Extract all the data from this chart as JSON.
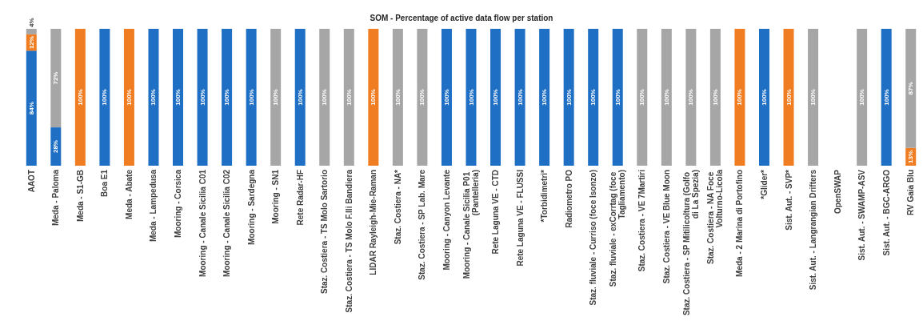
{
  "chart_data": {
    "type": "bar",
    "title": "SOM - Percentage of active data flow per station",
    "categories": [
      "AAOT",
      "Meda - Paloma",
      "Meda - S1-GB",
      "Boa E1",
      "Meda - Abate",
      "Meda - Lampedusa",
      "Mooring - Corsica",
      "Mooring - Canale Sicilia C01",
      "Mooring - Canale Sicilia C02",
      "Mooring - Sardegna",
      "Mooring - SN1",
      "Rete Radar-HF",
      "Staz. Costiera - TS Molo Sartorio",
      "Staz. Costiera - TS Molo F.lli Bandiera",
      "LIDAR Rayleigh-Mie-Raman",
      "Staz. Costiera - NA*",
      "Staz. Costiera - SP Lab. Mare",
      "Mooring - Canyon Levante",
      "Mooring - Canale Sicilia P01 (Pantelleria)",
      "Rete Laguna VE - CTD",
      "Rete Laguna VE - FLUSSI",
      "*Torbidimetri*",
      "Radiometro PO",
      "Staz. fluviale - Curriso (foce Isonzo)",
      "Staz. fluviale - exCorrtag (foce Tagliamento)",
      "Staz. Costiera - VE 7Martiri",
      "Staz. Costiera - VE Blue Moon",
      "Staz. Costiera - SP Mitilicoltura (Golfo di La Spezia)",
      "Staz. Costiera - NA Foce Volturno-Licola",
      "Meda - 2 Marina di Portofino",
      "*Glider*",
      "Sist. Aut. - SVP*",
      "Sist. Aut. - Langrangian Drifters",
      "OpenSWAP",
      "Sist. Aut. - SWAMP-ASV",
      "Sist. Aut. - BGC-ARGO",
      "RV Gaia Blu"
    ],
    "stacked": true,
    "ylim": [
      0,
      100
    ],
    "tick_labels": "x",
    "series": [
      {
        "color": "#1f6fc5",
        "values": [
          84,
          28,
          0,
          100,
          0,
          100,
          100,
          100,
          100,
          100,
          0,
          100,
          0,
          0,
          0,
          0,
          0,
          100,
          100,
          100,
          100,
          100,
          100,
          100,
          100,
          0,
          0,
          0,
          0,
          0,
          100,
          0,
          0,
          null,
          0,
          100,
          0
        ],
        "value_labels": [
          "84%",
          "28%",
          null,
          "100%",
          null,
          "100%",
          "100%",
          "100%",
          "100%",
          "100%",
          null,
          "100%",
          null,
          null,
          null,
          null,
          null,
          "100%",
          "100%",
          "100%",
          "100%",
          "100%",
          "100%",
          "100%",
          "100%",
          null,
          null,
          null,
          null,
          null,
          "100%",
          null,
          null,
          null,
          null,
          "100%",
          null
        ]
      },
      {
        "color": "#f07d22",
        "values": [
          12,
          0,
          100,
          0,
          100,
          0,
          0,
          0,
          0,
          0,
          0,
          0,
          0,
          0,
          100,
          0,
          0,
          0,
          0,
          0,
          0,
          0,
          0,
          0,
          0,
          0,
          0,
          0,
          0,
          100,
          0,
          100,
          0,
          null,
          0,
          0,
          13
        ],
        "value_labels": [
          "12%",
          null,
          "100%",
          null,
          "100%",
          null,
          null,
          null,
          null,
          null,
          null,
          null,
          null,
          null,
          "100%",
          null,
          null,
          null,
          null,
          null,
          null,
          null,
          null,
          null,
          null,
          null,
          null,
          null,
          null,
          "100%",
          null,
          "100%",
          null,
          null,
          null,
          null,
          "13%"
        ]
      },
      {
        "color": "#a6a6a6",
        "values": [
          4,
          72,
          0,
          0,
          0,
          0,
          0,
          0,
          0,
          0,
          100,
          0,
          100,
          100,
          0,
          100,
          100,
          0,
          0,
          0,
          0,
          0,
          0,
          0,
          0,
          100,
          100,
          100,
          100,
          0,
          0,
          0,
          100,
          null,
          100,
          0,
          87
        ],
        "value_labels": [
          "4%",
          "72%",
          null,
          null,
          null,
          null,
          null,
          null,
          null,
          null,
          "100%",
          null,
          "100%",
          "100%",
          null,
          "100%",
          "100%",
          null,
          null,
          null,
          null,
          null,
          null,
          null,
          null,
          "100%",
          "100%",
          "100%",
          "100%",
          null,
          null,
          null,
          "100%",
          null,
          "100%",
          null,
          "87%"
        ]
      }
    ]
  }
}
